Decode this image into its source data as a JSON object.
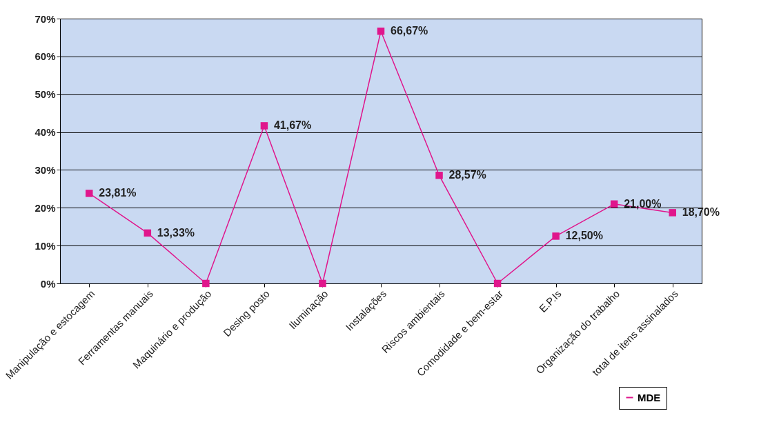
{
  "chart_data": {
    "type": "line",
    "categories": [
      "Manipulação e estocagem",
      "Ferramentas manuais",
      "Maquinário e produção",
      "Desing posto",
      "Iluminação",
      "Instalações",
      "Riscos ambientais",
      "Comodidade e bem-estar",
      "E.P.Is",
      "Organização do trabalho",
      "total de itens assinalados"
    ],
    "series": [
      {
        "name": "MDE",
        "color": "#e0168c",
        "values": [
          23.81,
          13.33,
          0,
          41.67,
          0,
          66.67,
          28.57,
          0,
          12.5,
          21.0,
          18.7
        ],
        "value_labels": [
          "23,81%",
          "13,33%",
          null,
          "41,67%",
          null,
          "66,67%",
          "28,57%",
          null,
          "12,50%",
          "21,00%",
          "18,70%"
        ]
      }
    ],
    "ylim": [
      0,
      70
    ],
    "yticks": [
      {
        "value": 0,
        "label": "0%"
      },
      {
        "value": 10,
        "label": "10%"
      },
      {
        "value": 20,
        "label": "20%"
      },
      {
        "value": 30,
        "label": "30%"
      },
      {
        "value": 40,
        "label": "40%"
      },
      {
        "value": 50,
        "label": "50%"
      },
      {
        "value": 60,
        "label": "60%"
      },
      {
        "value": 70,
        "label": "70%"
      }
    ],
    "grid": "y",
    "legend": "bottom right",
    "marker": "square",
    "line_style": "solid"
  }
}
